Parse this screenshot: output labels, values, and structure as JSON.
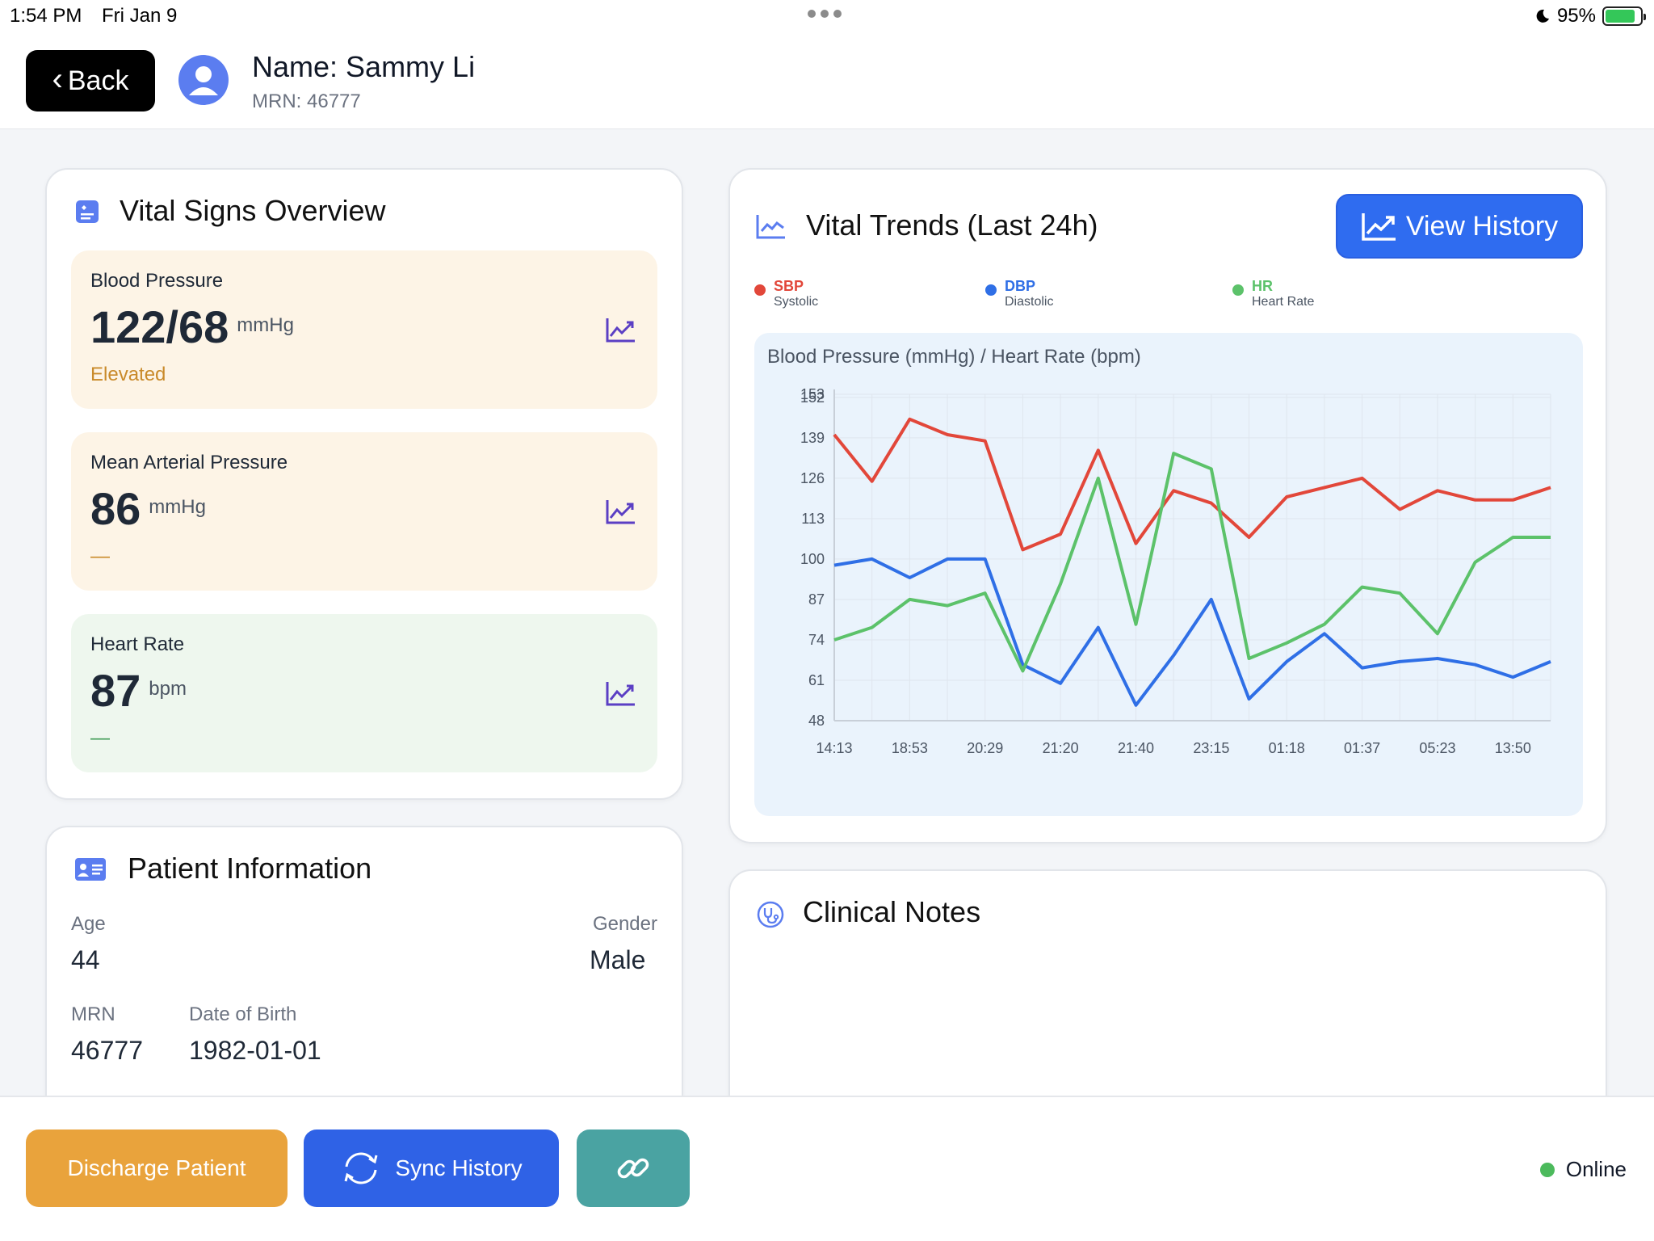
{
  "status_bar": {
    "time": "1:54 PM",
    "date": "Fri Jan 9",
    "battery": "95%"
  },
  "header": {
    "back_label": "Back",
    "name": "Name: Sammy Li",
    "mrn": "MRN: 46777"
  },
  "vitals": {
    "title": "Vital Signs Overview",
    "items": [
      {
        "label": "Blood Pressure",
        "value": "122/68",
        "unit": "mmHg",
        "status": "Elevated",
        "status_color": "#c98a2a",
        "bg": "#fdf4e6"
      },
      {
        "label": "Mean Arterial Pressure",
        "value": "86",
        "unit": "mmHg",
        "status": "—",
        "status_color": "#c98a2a",
        "bg": "#fdf4e6"
      },
      {
        "label": "Heart Rate",
        "value": "87",
        "unit": "bpm",
        "status": "—",
        "status_color": "#3f9b55",
        "bg": "#eef7ee"
      }
    ]
  },
  "patient_info": {
    "title": "Patient Information",
    "age_label": "Age",
    "age": "44",
    "gender_label": "Gender",
    "gender": "Male",
    "mrn_label": "MRN",
    "mrn": "46777",
    "dob_label": "Date of Birth",
    "dob": "1982-01-01"
  },
  "trends": {
    "title": "Vital Trends (Last 24h)",
    "view_history_label": "View History",
    "chart_caption": "Blood Pressure (mmHg) / Heart Rate (bpm)",
    "legend": [
      {
        "name": "SBP",
        "sub": "Systolic",
        "color": "#e2473a"
      },
      {
        "name": "DBP",
        "sub": "Diastolic",
        "color": "#2f6fe6"
      },
      {
        "name": "HR",
        "sub": "Heart Rate",
        "color": "#5cc26a"
      }
    ]
  },
  "chart_data": {
    "type": "line",
    "title": "Blood Pressure (mmHg) / Heart Rate (bpm)",
    "yticks": [
      48,
      61,
      74,
      87,
      100,
      113,
      126,
      139,
      152,
      153
    ],
    "ylim": [
      48,
      153
    ],
    "xtick_labels": [
      "14:13",
      "18:53",
      "20:29",
      "21:20",
      "21:40",
      "23:15",
      "01:18",
      "01:37",
      "05:23",
      "13:50"
    ],
    "grid": true,
    "n_points": 20,
    "series": [
      {
        "name": "SBP",
        "color": "#e2473a",
        "values": [
          140,
          125,
          145,
          140,
          138,
          103,
          108,
          135,
          105,
          122,
          118,
          107,
          120,
          123,
          126,
          116,
          122,
          119,
          119,
          123
        ]
      },
      {
        "name": "DBP",
        "color": "#2f6fe6",
        "values": [
          98,
          100,
          94,
          100,
          100,
          66,
          60,
          78,
          53,
          69,
          87,
          55,
          67,
          76,
          65,
          67,
          68,
          66,
          62,
          67
        ]
      },
      {
        "name": "HR",
        "color": "#5cc26a",
        "values": [
          74,
          78,
          87,
          85,
          89,
          64,
          92,
          126,
          79,
          134,
          129,
          68,
          73,
          79,
          91,
          89,
          76,
          99,
          107,
          107
        ]
      }
    ]
  },
  "clinical_notes": {
    "title": "Clinical Notes"
  },
  "bottom": {
    "discharge_label": "Discharge Patient",
    "sync_label": "Sync History",
    "status": "Online"
  }
}
